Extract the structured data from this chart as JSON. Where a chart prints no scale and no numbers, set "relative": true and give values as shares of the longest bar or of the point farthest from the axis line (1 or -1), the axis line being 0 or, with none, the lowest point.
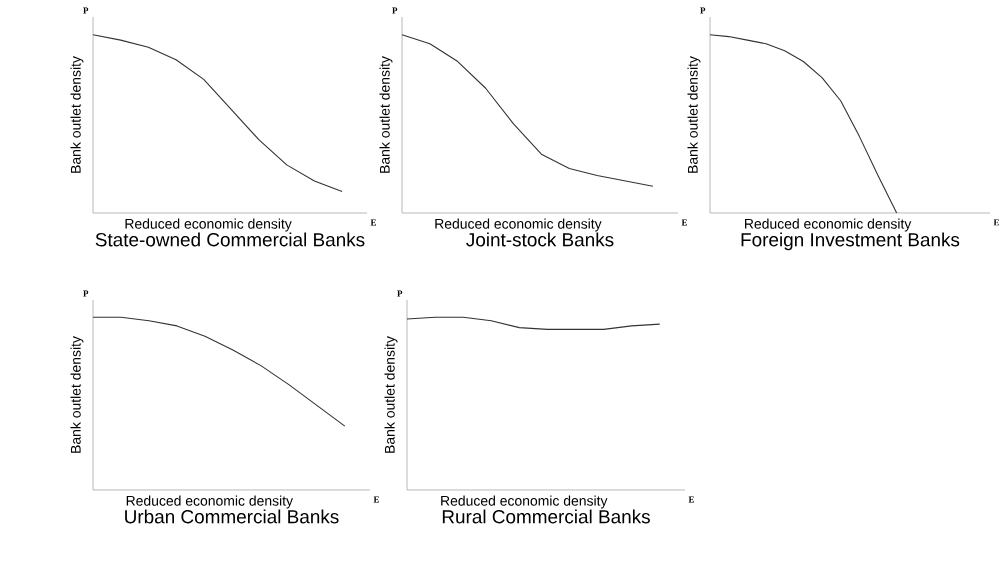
{
  "chart_data": [
    {
      "type": "line",
      "relative": true,
      "title": "State-owned Commercial Banks",
      "xlabel": "Reduced economic density",
      "ylabel": "Bank outlet density",
      "annotations": [
        "P",
        "E"
      ],
      "color": "#333333",
      "categories": [
        null,
        null,
        null,
        null,
        null,
        null,
        null,
        null,
        null,
        null
      ],
      "values": [
        1,
        0.97,
        0.93,
        0.86,
        0.75,
        0.58,
        0.41,
        0.27,
        0.18,
        0.12
      ]
    },
    {
      "type": "line",
      "relative": true,
      "title": "Joint-stock Banks",
      "xlabel": "Reduced economic density",
      "ylabel": "Bank outlet density",
      "annotations": [
        "P",
        "E"
      ],
      "color": "#333333",
      "categories": [
        null,
        null,
        null,
        null,
        null,
        null,
        null,
        null,
        null,
        null
      ],
      "values": [
        1,
        0.95,
        0.85,
        0.7,
        0.5,
        0.33,
        0.25,
        0.21,
        0.18,
        0.15
      ]
    },
    {
      "type": "line",
      "relative": true,
      "title": "Foreign Investment Banks",
      "xlabel": "Reduced economic density",
      "ylabel": "Bank outlet density",
      "annotations": [
        "P",
        "E"
      ],
      "color": "#333333",
      "categories": [
        null,
        null,
        null,
        null,
        null,
        null,
        null,
        null,
        null,
        null,
        null
      ],
      "values": [
        1,
        0.99,
        0.97,
        0.95,
        0.91,
        0.85,
        0.76,
        0.63,
        0.43,
        0.21,
        0
      ]
    },
    {
      "type": "line",
      "relative": true,
      "title": "Urban Commercial Banks",
      "xlabel": "Reduced economic density",
      "ylabel": "Bank outlet density",
      "annotations": [
        "P",
        "E"
      ],
      "color": "#333333",
      "categories": [
        null,
        null,
        null,
        null,
        null,
        null,
        null,
        null,
        null,
        null
      ],
      "values": [
        1,
        1,
        0.98,
        0.95,
        0.89,
        0.81,
        0.72,
        0.61,
        0.49,
        0.37
      ]
    },
    {
      "type": "line",
      "relative": true,
      "title": "Rural Commercial Banks",
      "xlabel": "Reduced economic density",
      "ylabel": "Bank outlet density",
      "annotations": [
        "P",
        "E"
      ],
      "color": "#333333",
      "categories": [
        null,
        null,
        null,
        null,
        null,
        null,
        null,
        null,
        null,
        null
      ],
      "values": [
        0.99,
        1,
        1,
        0.98,
        0.94,
        0.93,
        0.93,
        0.93,
        0.95,
        0.96
      ]
    }
  ]
}
